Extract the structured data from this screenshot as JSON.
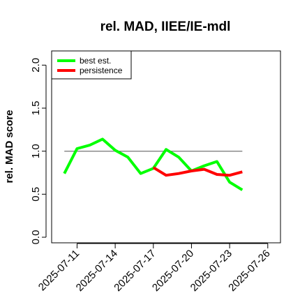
{
  "chart_data": {
    "type": "line",
    "title": "rel. MAD, IIEE/IE-mdl",
    "xlabel": "",
    "ylabel": "rel. MAD score",
    "xlim": [
      "2025-07-09",
      "2025-07-27"
    ],
    "ylim": [
      0,
      2.1
    ],
    "x_ticks": [
      "2025-07-11",
      "2025-07-14",
      "2025-07-17",
      "2025-07-20",
      "2025-07-23",
      "2025-07-26"
    ],
    "y_ticks": [
      "0.0",
      "0.5",
      "1.0",
      "1.5",
      "2.0"
    ],
    "y_tick_values": [
      0,
      0.5,
      1.0,
      1.5,
      2.0
    ],
    "reference_line": {
      "y": 1.0,
      "x_start": "2025-07-10",
      "x_end": "2025-07-24",
      "color": "#808080"
    },
    "legend": {
      "position": "top-left"
    },
    "grid": false,
    "series": [
      {
        "name": "best est.",
        "color": "#00ff00",
        "x": [
          "2025-07-10",
          "2025-07-11",
          "2025-07-12",
          "2025-07-13",
          "2025-07-14",
          "2025-07-15",
          "2025-07-16",
          "2025-07-17",
          "2025-07-18",
          "2025-07-19",
          "2025-07-20",
          "2025-07-21",
          "2025-07-22",
          "2025-07-23",
          "2025-07-24"
        ],
        "values": [
          0.74,
          1.03,
          1.07,
          1.14,
          1.01,
          0.93,
          0.74,
          0.8,
          1.02,
          0.93,
          0.77,
          0.83,
          0.88,
          0.64,
          0.55
        ]
      },
      {
        "name": "persistence",
        "color": "#ff0000",
        "x": [
          "2025-07-17",
          "2025-07-18",
          "2025-07-19",
          "2025-07-20",
          "2025-07-21",
          "2025-07-22",
          "2025-07-23",
          "2025-07-24"
        ],
        "values": [
          0.81,
          0.72,
          0.74,
          0.77,
          0.79,
          0.73,
          0.72,
          0.76
        ]
      }
    ]
  }
}
